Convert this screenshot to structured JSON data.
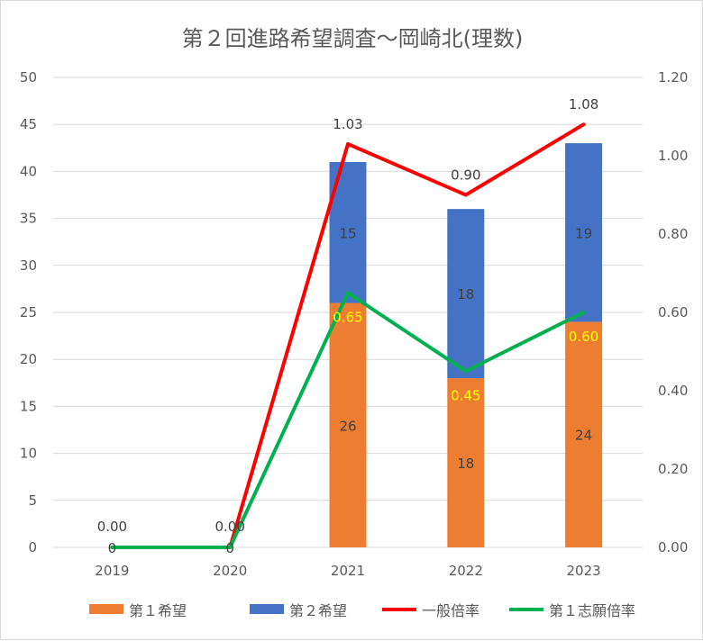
{
  "chart_data": {
    "type": "bar",
    "title": "第２回進路希望調査～岡崎北(理数)",
    "categories": [
      "2019",
      "2020",
      "2021",
      "2022",
      "2023"
    ],
    "ylim": [
      0,
      50
    ],
    "y_ticks": [
      "0",
      "5",
      "10",
      "15",
      "20",
      "25",
      "30",
      "35",
      "40",
      "45",
      "50"
    ],
    "y2lim": [
      0,
      1.2
    ],
    "y2_ticks": [
      "0.00",
      "0.20",
      "0.40",
      "0.60",
      "0.80",
      "1.00",
      "1.20"
    ],
    "grid": true,
    "legend_position": "bottom",
    "series": [
      {
        "name": "第１希望",
        "type": "bar",
        "stacked": true,
        "axis": "left",
        "color": "#ED7D31",
        "values": [
          0,
          0,
          26,
          18,
          24
        ],
        "labels": [
          "0",
          "0",
          "26",
          "18",
          "24"
        ]
      },
      {
        "name": "第２希望",
        "type": "bar",
        "stacked": true,
        "axis": "left",
        "color": "#4472C4",
        "values": [
          0,
          0,
          15,
          18,
          19
        ],
        "labels": [
          "",
          "",
          "15",
          "18",
          "19"
        ]
      },
      {
        "name": "一般倍率",
        "type": "line",
        "axis": "right",
        "color": "#FF0000",
        "values": [
          0,
          0,
          1.03,
          0.9,
          1.08
        ],
        "labels": [
          "0.00",
          "0.00",
          "1.03",
          "0.90",
          "1.08"
        ]
      },
      {
        "name": "第１志願倍率",
        "type": "line",
        "axis": "right",
        "color": "#00B050",
        "values": [
          0,
          0,
          0.65,
          0.45,
          0.6
        ],
        "labels": [
          "",
          "",
          "0.65",
          "0.45",
          "0.60"
        ]
      }
    ]
  }
}
